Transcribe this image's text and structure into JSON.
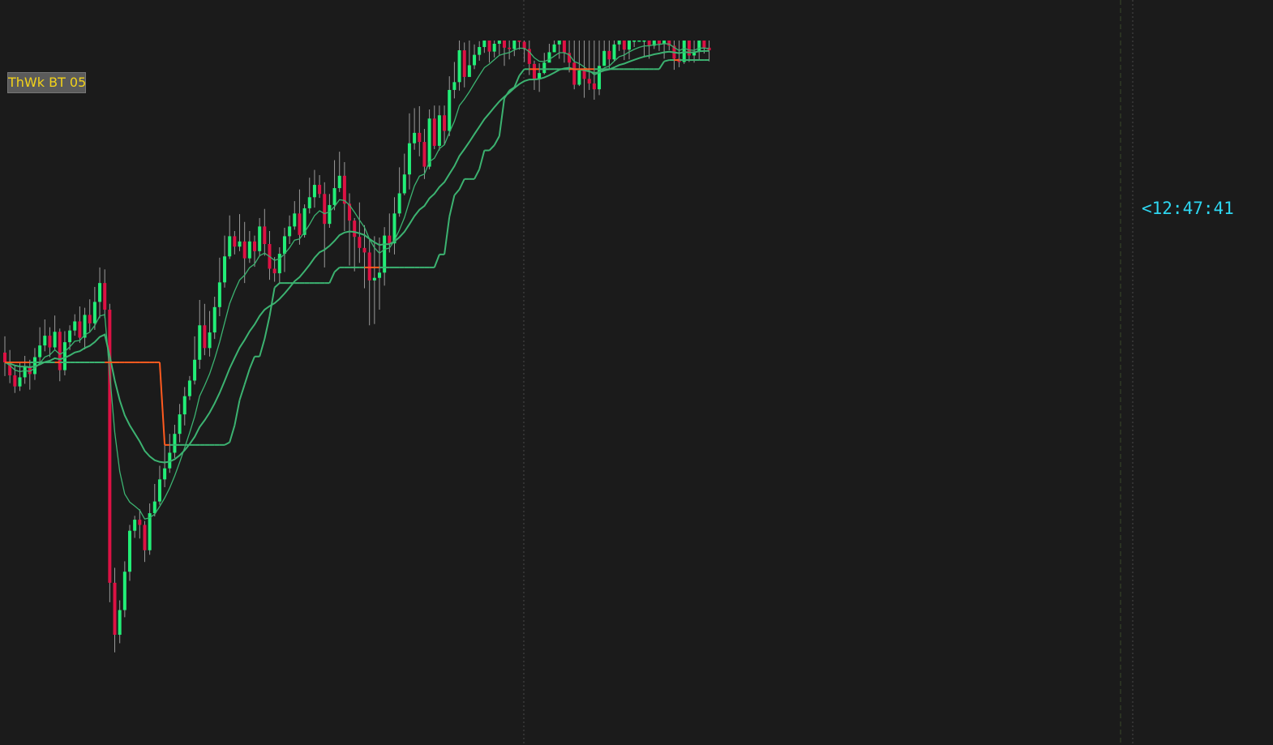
{
  "indicator_label": "ThWk BT 05",
  "bar_timer": "<12:47:41",
  "colors": {
    "background": "#1b1b1b",
    "up_candle": "#22ee77",
    "down_candle": "#dd1144",
    "fast_ma": "#3cb371",
    "slow_ma": "#ff5a1f",
    "timer": "#2ed6f0",
    "label_text": "#f2d21a",
    "grid": "#4a4a4a"
  },
  "chart_data": {
    "type": "candlestick",
    "title": "",
    "xlabel": "",
    "ylabel": "",
    "ylim": [
      0,
      100
    ],
    "grid": "vertical dotted session separators",
    "candles": [
      [
        52,
        50.5,
        54.5,
        48.4
      ],
      [
        50.5,
        48.5,
        52.4,
        47.3
      ],
      [
        48.5,
        46.8,
        50,
        45.8
      ],
      [
        46.8,
        48.2,
        50.4,
        46.1
      ],
      [
        48.2,
        49.8,
        51.5,
        47.2
      ],
      [
        49.8,
        48.7,
        50.9,
        46.3
      ],
      [
        48.7,
        51.3,
        52.7,
        47.8
      ],
      [
        51.3,
        53.1,
        55.9,
        50.4
      ],
      [
        53.1,
        54.6,
        57.1,
        52.2
      ],
      [
        54.6,
        52.8,
        55.9,
        51.3
      ],
      [
        52.8,
        55.2,
        57.7,
        52.3
      ],
      [
        55.2,
        49.3,
        55.7,
        47.6
      ],
      [
        49.3,
        53.6,
        55.3,
        48.5
      ],
      [
        53.6,
        55.4,
        56.2,
        52.4
      ],
      [
        55.4,
        56.8,
        57.9,
        54.6
      ],
      [
        56.8,
        54.3,
        59.1,
        53.5
      ],
      [
        54.3,
        57.8,
        58.9,
        52.5
      ],
      [
        57.8,
        56.5,
        60.2,
        55.2
      ],
      [
        56.5,
        59.8,
        62.1,
        55.5
      ],
      [
        59.8,
        62.7,
        65.1,
        57.3
      ],
      [
        62.7,
        58.6,
        64.8,
        57.3
      ],
      [
        58.6,
        16.6,
        59.5,
        13.6
      ],
      [
        16.6,
        8.6,
        18.9,
        5.9
      ],
      [
        8.6,
        12.4,
        13.9,
        7.3
      ],
      [
        12.4,
        18.3,
        19.9,
        11.3
      ],
      [
        18.3,
        24.6,
        25.5,
        16.9
      ],
      [
        24.6,
        26.3,
        26.9,
        23.5
      ],
      [
        26.3,
        25.5,
        27.9,
        23.4
      ],
      [
        25.5,
        21.6,
        26.1,
        19.8
      ],
      [
        21.6,
        27.3,
        28.8,
        20.9
      ],
      [
        27.3,
        29.1,
        31.8,
        26.8
      ],
      [
        29.1,
        32.5,
        34.6,
        28.6
      ],
      [
        32.5,
        34.2,
        37.8,
        31.3
      ],
      [
        34.2,
        36.6,
        39.5,
        33.5
      ],
      [
        36.6,
        39.5,
        40.9,
        35.8
      ],
      [
        39.5,
        42.5,
        44.1,
        38.2
      ],
      [
        42.5,
        45.3,
        46.7,
        40.8
      ],
      [
        45.3,
        47.7,
        48.4,
        44.7
      ],
      [
        47.7,
        50.9,
        54.5,
        47.1
      ],
      [
        50.9,
        56.2,
        60.1,
        49.5
      ],
      [
        56.2,
        52.7,
        59.5,
        51.6
      ],
      [
        52.7,
        55.1,
        58.4,
        51.4
      ],
      [
        55.1,
        59,
        60.6,
        54.1
      ],
      [
        59,
        62.8,
        66.6,
        57.6
      ],
      [
        62.8,
        66.8,
        70,
        62
      ],
      [
        66.8,
        69.9,
        73.1,
        66.4
      ],
      [
        69.9,
        68.3,
        70.7,
        67.1
      ],
      [
        68.3,
        69.1,
        73.3,
        67.6
      ],
      [
        69.1,
        66.5,
        72.1,
        62.7
      ],
      [
        66.5,
        69.1,
        70.7,
        65.8
      ],
      [
        69.1,
        67.6,
        70,
        65.2
      ],
      [
        67.6,
        71.4,
        72.7,
        66.8
      ],
      [
        71.4,
        68.7,
        74.1,
        66.9
      ],
      [
        68.7,
        64.9,
        70.7,
        63.2
      ],
      [
        64.9,
        64.2,
        66.7,
        62.9
      ],
      [
        64.2,
        67.2,
        68.2,
        62.7
      ],
      [
        67.2,
        69.9,
        71.2,
        64.4
      ],
      [
        69.9,
        71.4,
        73.1,
        68.7
      ],
      [
        71.4,
        73.4,
        75.3,
        70.9
      ],
      [
        73.4,
        70.1,
        77.1,
        68.6
      ],
      [
        70.1,
        74.2,
        74.8,
        69.7
      ],
      [
        74.2,
        75.9,
        78.9,
        73.4
      ],
      [
        75.9,
        77.8,
        80.1,
        74.3
      ],
      [
        77.8,
        76.4,
        79.3,
        75.8
      ],
      [
        76.4,
        71.8,
        78.2,
        65.1
      ],
      [
        71.8,
        74.7,
        76.4,
        71.2
      ],
      [
        74.7,
        77.3,
        81.6,
        73.9
      ],
      [
        77.3,
        79.2,
        82.9,
        76.7
      ],
      [
        79.2,
        74.9,
        81.3,
        70.7
      ],
      [
        74.9,
        72.3,
        76.5,
        65.4
      ],
      [
        72.3,
        69.8,
        72.7,
        64.5
      ],
      [
        69.8,
        68.1,
        75.1,
        65.8
      ],
      [
        68.1,
        67.4,
        71.6,
        61.9
      ],
      [
        67.4,
        63.1,
        69.4,
        56.2
      ],
      [
        63.1,
        63.5,
        69.9,
        56.4
      ],
      [
        63.5,
        64.3,
        69.7,
        58.6
      ],
      [
        64.3,
        70,
        71.3,
        62.3
      ],
      [
        70,
        68.8,
        73.4,
        67.4
      ],
      [
        68.8,
        73.4,
        75.9,
        67.1
      ],
      [
        73.4,
        76.5,
        80.5,
        72.9
      ],
      [
        76.5,
        79.4,
        82.6,
        76.2
      ],
      [
        79.4,
        84.2,
        88.8,
        77.1
      ],
      [
        84.2,
        85.8,
        89.6,
        83.2
      ],
      [
        85.8,
        84.4,
        89.9,
        82.2
      ],
      [
        84.4,
        80.6,
        86.4,
        78.7
      ],
      [
        80.6,
        88,
        89.4,
        80.2
      ],
      [
        88,
        83.8,
        90,
        83.3
      ],
      [
        83.8,
        88.5,
        90,
        83.1
      ],
      [
        88.5,
        86.1,
        90,
        83.9
      ],
      [
        86.1,
        92.4,
        94.5,
        85.3
      ],
      [
        92.4,
        93.6,
        96.7,
        91.1
      ],
      [
        93.6,
        98.5,
        100,
        92.3
      ],
      [
        98.5,
        94.4,
        99.7,
        92.8
      ],
      [
        94.4,
        96.2,
        100,
        94.6
      ],
      [
        96.2,
        97.8,
        99.4,
        95.6
      ],
      [
        97.8,
        99,
        99.9,
        96.9
      ],
      [
        99,
        100,
        100,
        98.1
      ],
      [
        100,
        98.3,
        100,
        96.6
      ],
      [
        98.3,
        99.5,
        100,
        97.4
      ],
      [
        99.5,
        100,
        100,
        97.8
      ],
      [
        100,
        98.9,
        100,
        96.1
      ],
      [
        98.9,
        98.7,
        100,
        97.1
      ],
      [
        98.7,
        100,
        100,
        97.6
      ],
      [
        100,
        99.8,
        100,
        98.6
      ],
      [
        99.8,
        98.7,
        100,
        96.7
      ],
      [
        98.7,
        96.4,
        100,
        94.7
      ],
      [
        96.4,
        94.1,
        96.9,
        92.4
      ],
      [
        94.1,
        95,
        96.5,
        92.1
      ],
      [
        95,
        96.6,
        98.1,
        94.8
      ],
      [
        96.6,
        98.2,
        99.5,
        96.9
      ],
      [
        98.2,
        99.4,
        100,
        98.2
      ],
      [
        99.4,
        100,
        100,
        97.2
      ],
      [
        100,
        98.1,
        100,
        96.6
      ],
      [
        98.1,
        96.6,
        100,
        95.1
      ],
      [
        96.6,
        93.2,
        100,
        92.5
      ],
      [
        93.2,
        95.4,
        100,
        93
      ],
      [
        95.4,
        94.1,
        100,
        91.2
      ],
      [
        94.1,
        93.4,
        100,
        92.4
      ],
      [
        93.4,
        92.5,
        100,
        90.9
      ],
      [
        92.5,
        96.1,
        100,
        91.6
      ],
      [
        96.1,
        98.4,
        100,
        96.1
      ],
      [
        98.4,
        97.1,
        100,
        95.6
      ],
      [
        97.1,
        99.4,
        100,
        96.8
      ],
      [
        99.4,
        100,
        100,
        98.4
      ],
      [
        100,
        98.6,
        100,
        97
      ],
      [
        98.6,
        100,
        100,
        97.1
      ],
      [
        100,
        100,
        100,
        99
      ],
      [
        100,
        100,
        100,
        100
      ],
      [
        100,
        100,
        100,
        97.4
      ],
      [
        100,
        99.2,
        100,
        97.2
      ],
      [
        99.2,
        100,
        100,
        98.7
      ],
      [
        100,
        99.5,
        100,
        98.4
      ],
      [
        99.5,
        100,
        100,
        97.2
      ],
      [
        100,
        99.2,
        100,
        98.5
      ],
      [
        99.2,
        97.2,
        100,
        95.5
      ],
      [
        97.2,
        96.7,
        100,
        95.9
      ],
      [
        96.7,
        100,
        100,
        96.4
      ],
      [
        100,
        97.7,
        100,
        96.7
      ],
      [
        97.7,
        98.3,
        100,
        96.6
      ],
      [
        98.3,
        100,
        100,
        97
      ],
      [
        100,
        98.9,
        100,
        98
      ],
      [
        98.9,
        98.5,
        100,
        96.8
      ]
    ]
  }
}
